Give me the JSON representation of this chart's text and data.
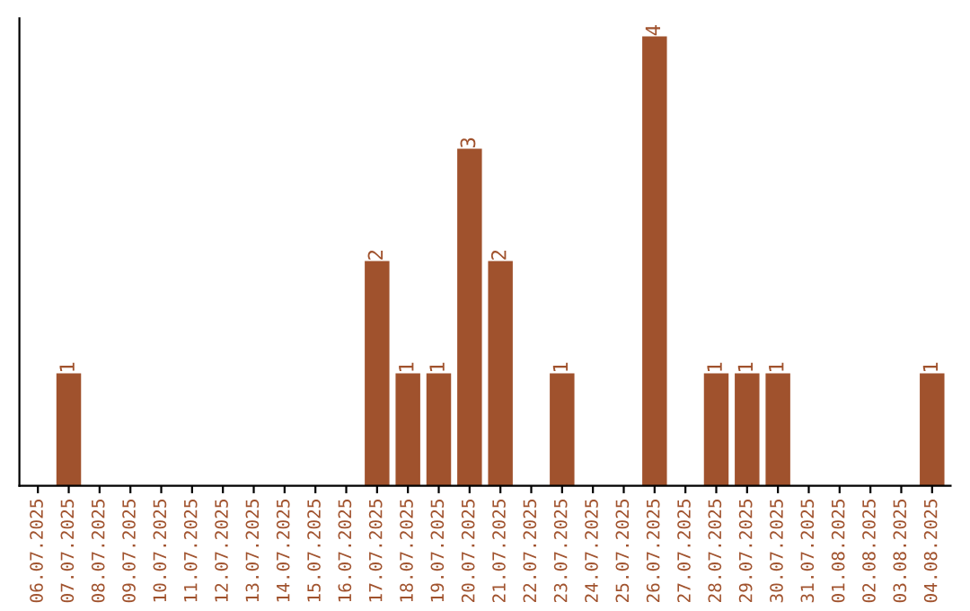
{
  "chart_data": {
    "type": "bar",
    "categories": [
      "06.07.2025",
      "07.07.2025",
      "08.07.2025",
      "09.07.2025",
      "10.07.2025",
      "11.07.2025",
      "12.07.2025",
      "13.07.2025",
      "14.07.2025",
      "15.07.2025",
      "16.07.2025",
      "17.07.2025",
      "18.07.2025",
      "19.07.2025",
      "20.07.2025",
      "21.07.2025",
      "22.07.2025",
      "23.07.2025",
      "24.07.2025",
      "25.07.2025",
      "26.07.2025",
      "27.07.2025",
      "28.07.2025",
      "29.07.2025",
      "30.07.2025",
      "31.07.2025",
      "01.08.2025",
      "02.08.2025",
      "03.08.2025",
      "04.08.2025"
    ],
    "values": [
      0,
      1,
      0,
      0,
      0,
      0,
      0,
      0,
      0,
      0,
      0,
      2,
      1,
      1,
      3,
      2,
      0,
      1,
      0,
      0,
      4,
      0,
      1,
      1,
      1,
      0,
      0,
      0,
      0,
      1
    ],
    "value_labels": [
      null,
      "1",
      null,
      null,
      null,
      null,
      null,
      null,
      null,
      null,
      null,
      "2",
      "1",
      "1",
      "3",
      "2",
      null,
      "1",
      null,
      null,
      "4",
      null,
      "1",
      "1",
      "1",
      null,
      null,
      null,
      null,
      "1"
    ],
    "color": "#a0522d",
    "ylim": [
      0,
      4.16
    ],
    "tick_labels": "x",
    "grid": false,
    "legend": false
  }
}
